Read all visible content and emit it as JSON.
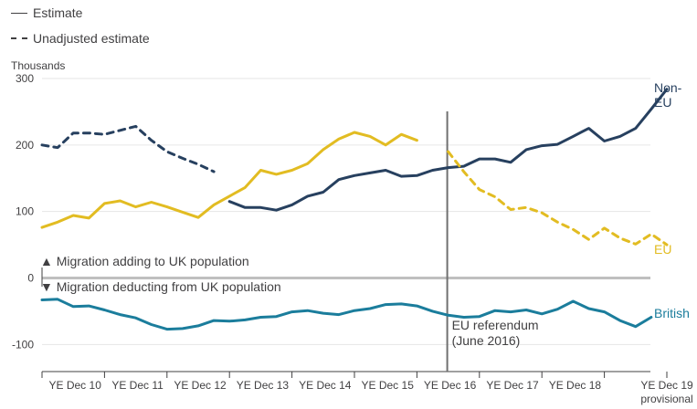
{
  "legend": [
    {
      "label": "Estimate",
      "style": "solid"
    },
    {
      "label": "Unadjusted estimate",
      "style": "dashed"
    }
  ],
  "chart_data": {
    "type": "line",
    "ylabel": "Thousands",
    "ylim": [
      -140,
      300
    ],
    "yticks": [
      300,
      200,
      100,
      0,
      -100
    ],
    "x_tick_labels": [
      "YE Dec 10",
      "YE Dec 11",
      "YE Dec 12",
      "YE Dec 13",
      "YE Dec 14",
      "YE Dec 15",
      "YE Dec 16",
      "YE Dec 17",
      "YE Dec 18",
      "YE Dec 19\nprovisional"
    ],
    "x_quarter_start": "YE Dec 09",
    "zero_annotations": {
      "above": "▲ Migration adding to UK population",
      "below": "▼ Migration deducting from UK population"
    },
    "event": {
      "quarter_index": 26,
      "label": "EU referendum\n(June 2016)"
    },
    "colors": {
      "non_eu": "#27405f",
      "eu": "#e2bc22",
      "british": "#1b7d9c",
      "axis": "#414042",
      "zero": "#bfbfbf",
      "event": "#707070"
    },
    "series": [
      {
        "name": "Non-EU",
        "color": "#27405f",
        "segments": [
          {
            "style": "dashed",
            "start": 0,
            "values": [
              200,
              196,
              218,
              218,
              216,
              222,
              228,
              207,
              190,
              180,
              171,
              160
            ]
          },
          {
            "style": "solid",
            "start": 12,
            "values": [
              115,
              106,
              106,
              102,
              110,
              123,
              129,
              148,
              154,
              158,
              162,
              153,
              154,
              162,
              166,
              168,
              179,
              179,
              174,
              193,
              199,
              201,
              213,
              225,
              206,
              213,
              225,
              254,
              284
            ]
          }
        ]
      },
      {
        "name": "EU",
        "color": "#e2bc22",
        "segments": [
          {
            "style": "solid",
            "start": 0,
            "values": [
              76,
              84,
              94,
              90,
              112,
              116,
              107,
              114,
              107,
              99,
              91,
              110,
              123,
              136,
              162,
              156,
              162,
              172,
              193,
              209,
              219,
              213,
              200,
              216,
              207
            ]
          },
          {
            "style": "dashed",
            "start": 26,
            "values": [
              190,
              160,
              133,
              122,
              103,
              106,
              98,
              84,
              73,
              58,
              75,
              60,
              51,
              66,
              50
            ]
          }
        ]
      },
      {
        "name": "British",
        "color": "#1b7d9c",
        "segments": [
          {
            "style": "solid",
            "start": 0,
            "values": [
              -33,
              -32,
              -43,
              -42,
              -48,
              -55,
              -60,
              -70,
              -77,
              -76,
              -72,
              -64,
              -65,
              -63,
              -59,
              -58,
              -51,
              -49,
              -53,
              -55,
              -49,
              -46,
              -40,
              -39,
              -42,
              -50,
              -56,
              -59,
              -58,
              -49,
              -51,
              -48,
              -54,
              -47,
              -35,
              -46,
              -51,
              -64,
              -73,
              -59
            ]
          }
        ]
      }
    ]
  }
}
